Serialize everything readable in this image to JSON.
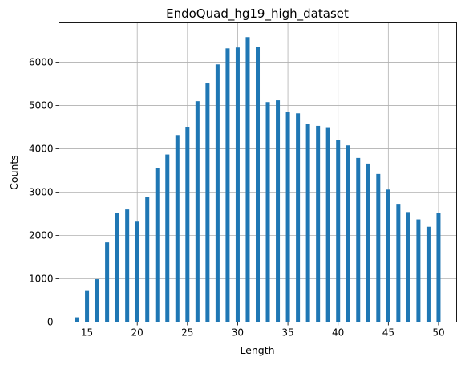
{
  "chart_data": {
    "type": "bar",
    "title": "EndoQuad_hg19_high_dataset",
    "xlabel": "Length",
    "ylabel": "Counts",
    "x": [
      14,
      15,
      16,
      17,
      18,
      19,
      20,
      21,
      22,
      23,
      24,
      25,
      26,
      27,
      28,
      29,
      30,
      31,
      32,
      33,
      34,
      35,
      36,
      37,
      38,
      39,
      40,
      41,
      42,
      43,
      44,
      45,
      46,
      47,
      48,
      49,
      50
    ],
    "values": [
      110,
      720,
      990,
      1840,
      2520,
      2600,
      2320,
      2890,
      3560,
      3870,
      4320,
      4510,
      5100,
      5510,
      5950,
      6320,
      6340,
      6580,
      6350,
      5080,
      5120,
      4850,
      4820,
      4580,
      4530,
      4500,
      4200,
      4080,
      3790,
      3660,
      3420,
      3060,
      2730,
      2540,
      2370,
      2200,
      2510
    ],
    "xlim": [
      12.2,
      51.8
    ],
    "ylim": [
      0,
      6909
    ],
    "xticks": [
      "15",
      "20",
      "25",
      "30",
      "35",
      "40",
      "45",
      "50"
    ],
    "yticks": [
      "0",
      "1000",
      "2000",
      "3000",
      "4000",
      "5000",
      "6000"
    ],
    "grid": true,
    "bar_color": "#1f77b4"
  }
}
